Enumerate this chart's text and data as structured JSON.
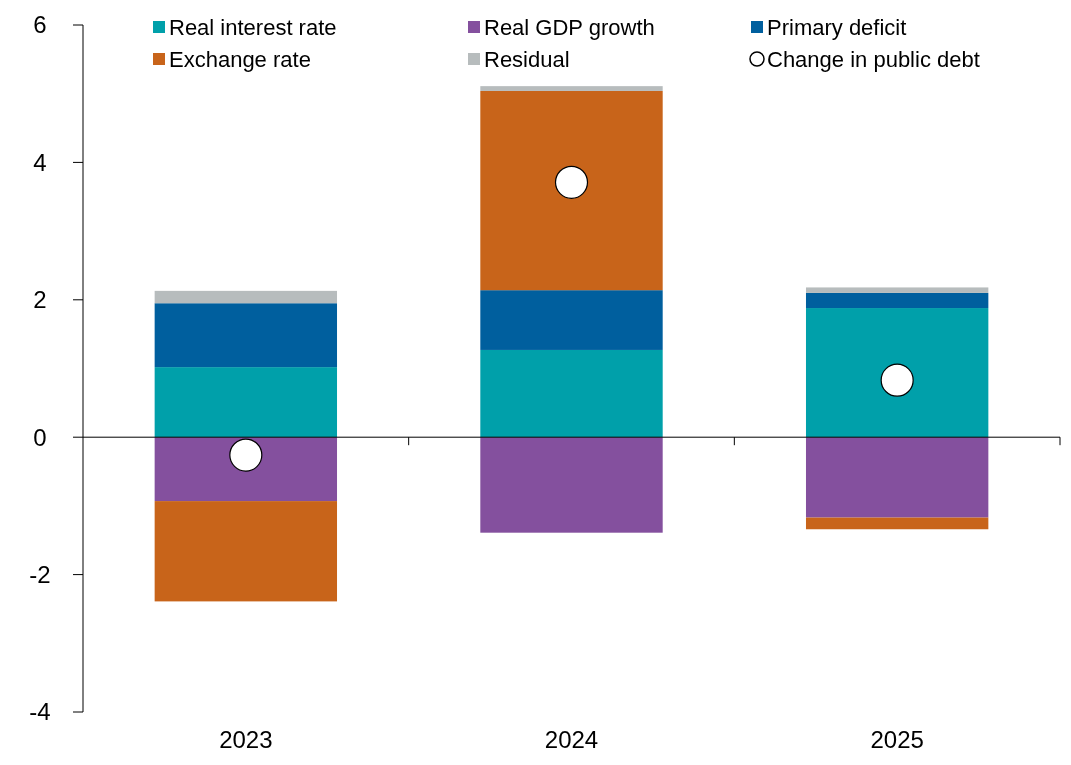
{
  "chart_data": {
    "type": "bar",
    "stacked": true,
    "categories": [
      "2023",
      "2024",
      "2025"
    ],
    "series": [
      {
        "name": "Real interest rate",
        "color": "#00a0aa",
        "values": [
          1.02,
          1.27,
          1.88
        ]
      },
      {
        "name": "Real GDP growth",
        "color": "#84509e",
        "values": [
          -0.93,
          -1.39,
          -1.17
        ]
      },
      {
        "name": "Primary deficit",
        "color": "#005f9e",
        "values": [
          0.93,
          0.87,
          0.22
        ]
      },
      {
        "name": "Exchange rate",
        "color": "#c8641a",
        "values": [
          -1.46,
          2.9,
          -0.17
        ]
      },
      {
        "name": "Residual",
        "color": "#b7bcbd",
        "values": [
          0.18,
          0.07,
          0.08
        ]
      },
      {
        "name": "Change in public debt",
        "type": "scatter",
        "color": "#ffffff",
        "marker": "circle",
        "values": [
          -0.26,
          3.71,
          0.83
        ]
      }
    ],
    "ylim": [
      -4,
      6
    ],
    "yticks": [
      -4,
      -2,
      0,
      2,
      4,
      6
    ],
    "legend": "top"
  }
}
